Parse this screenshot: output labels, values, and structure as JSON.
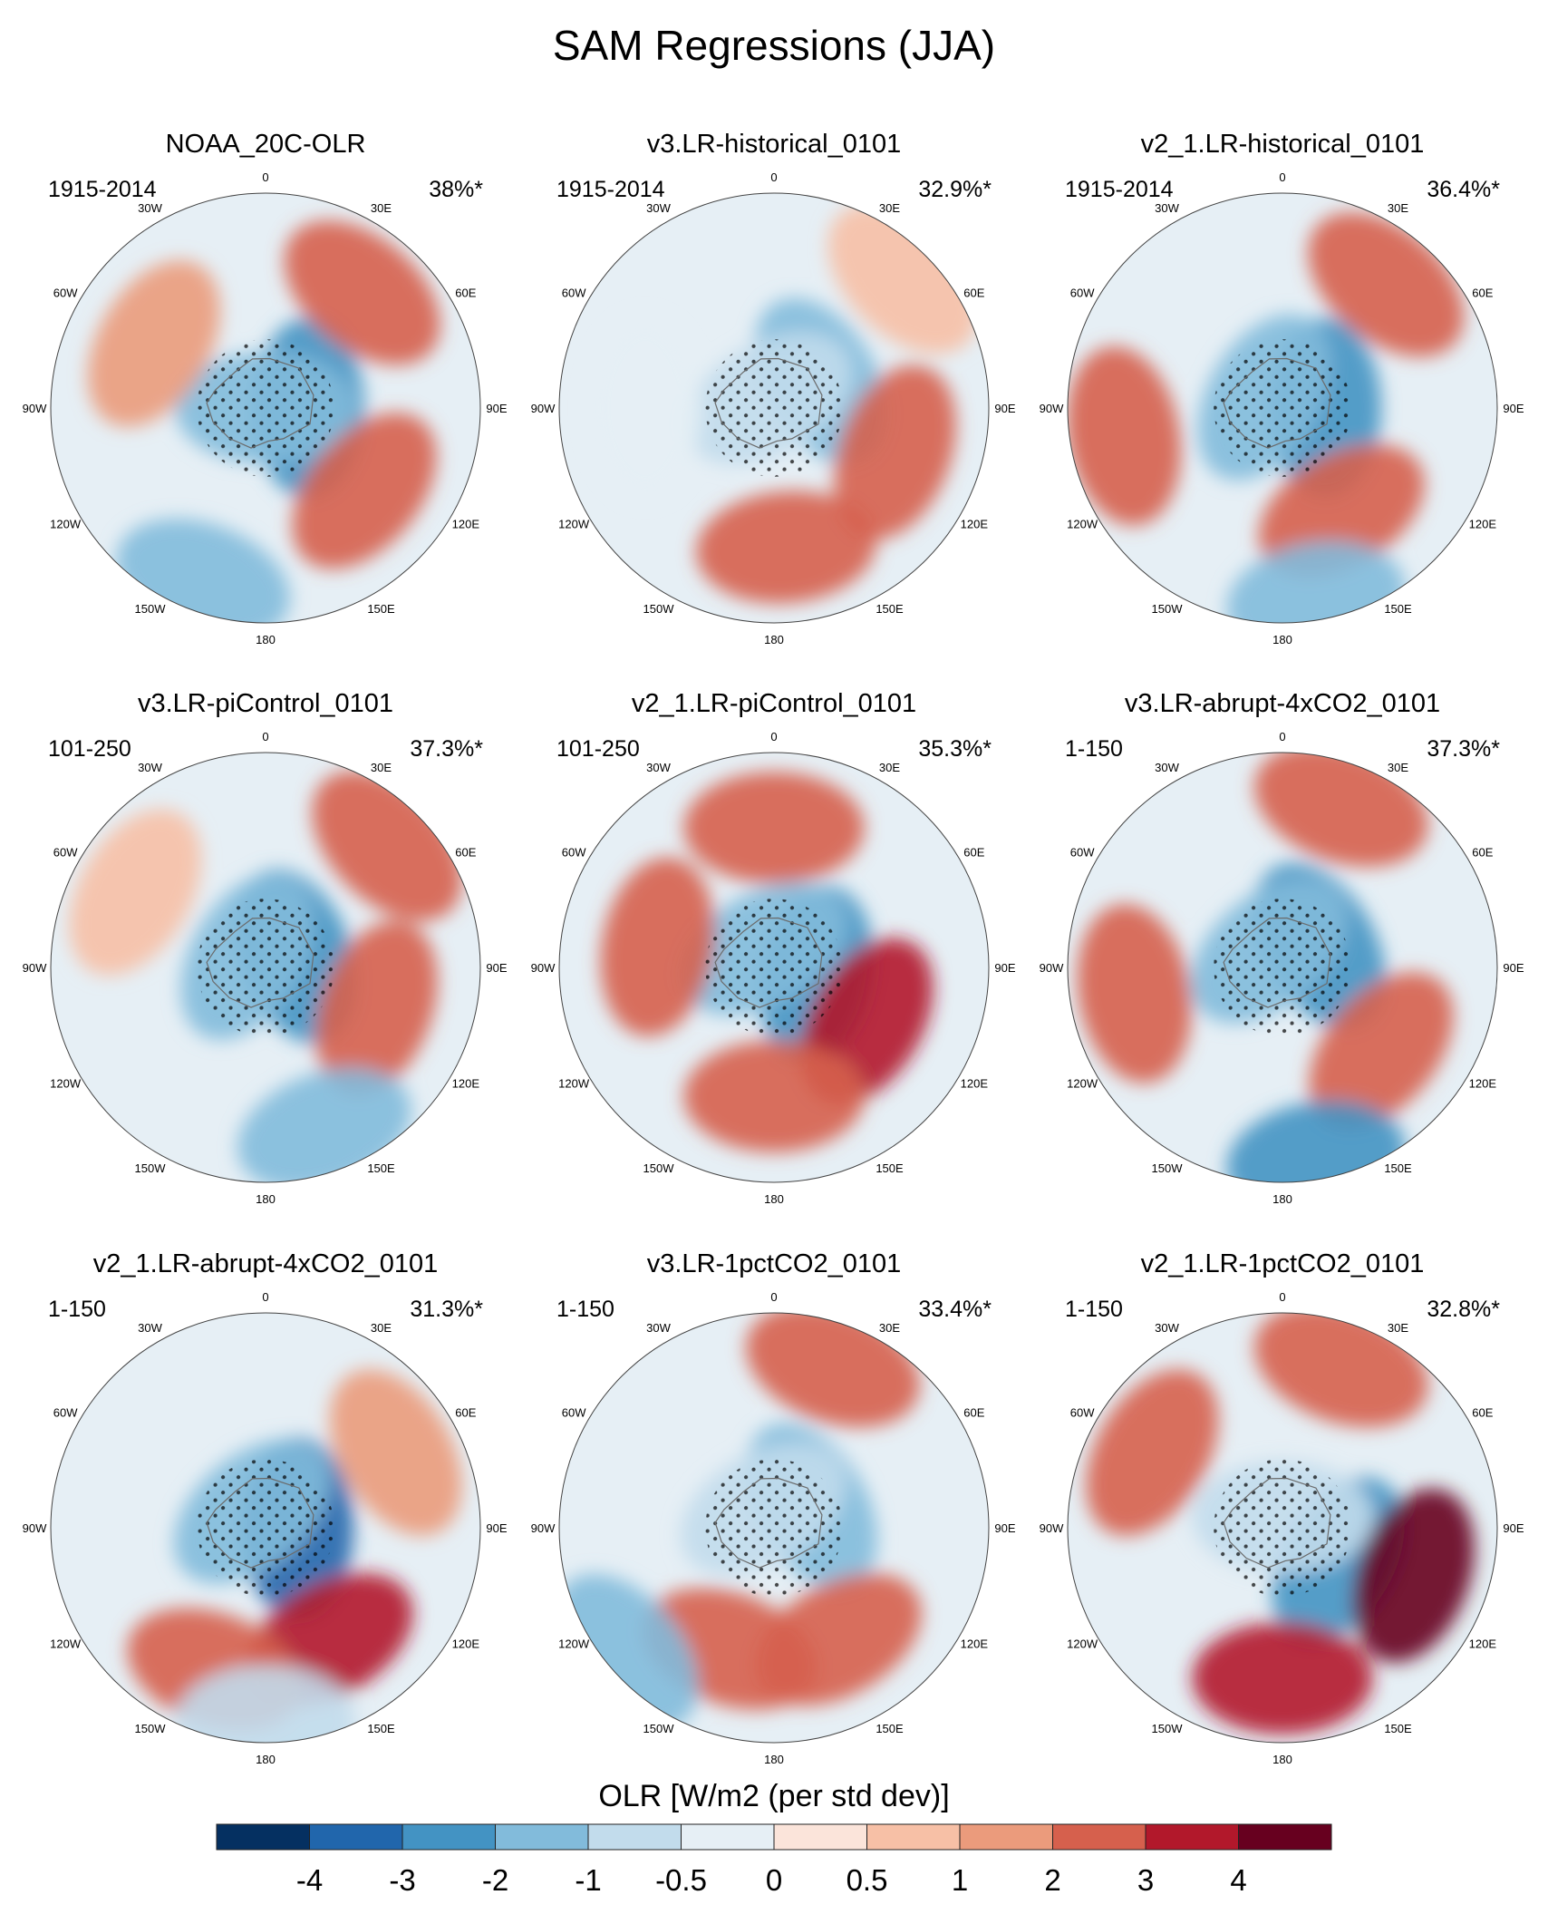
{
  "title": "SAM Regressions (JJA)",
  "colors": {
    "levels": [
      "#053061",
      "#2166ac",
      "#4393c3",
      "#82bbdb",
      "#c2dcec",
      "#e6eff5",
      "#fbe4da",
      "#f7c0a6",
      "#eb9b7c",
      "#d6604d",
      "#b2182b",
      "#67001f"
    ],
    "coast": "#6b6b6b",
    "stipple": "#000000"
  },
  "chart_data": {
    "type": "polar-map-panels",
    "variable": "OLR",
    "season": "JJA",
    "longitude_labels": [
      "0",
      "30E",
      "60E",
      "90E",
      "120E",
      "150E",
      "180",
      "150W",
      "120W",
      "90W",
      "60W",
      "30W"
    ],
    "panels": [
      {
        "title": "NOAA_20C-OLR",
        "period": "1915-2014",
        "variance": "38%*",
        "centers": [
          {
            "lon": 90,
            "r": 0.2,
            "v": -3
          },
          {
            "lon": 0,
            "r": 0.0,
            "v": -2
          },
          {
            "lon": 40,
            "r": 0.7,
            "v": 2
          },
          {
            "lon": 130,
            "r": 0.6,
            "v": 2
          },
          {
            "lon": 200,
            "r": 0.85,
            "v": -2
          },
          {
            "lon": 300,
            "r": 0.6,
            "v": 1
          }
        ]
      },
      {
        "title": "v3.LR-historical_0101",
        "period": "1915-2014",
        "variance": "32.9%*",
        "centers": [
          {
            "lon": 60,
            "r": 0.25,
            "v": -2
          },
          {
            "lon": 330,
            "r": 0.05,
            "v": -1
          },
          {
            "lon": 110,
            "r": 0.6,
            "v": 2
          },
          {
            "lon": 175,
            "r": 0.65,
            "v": 2
          },
          {
            "lon": 45,
            "r": 0.85,
            "v": 0.5
          },
          {
            "lon": 270,
            "r": 0.6,
            "v": -0.5
          }
        ]
      },
      {
        "title": "v2_1.LR-historical_0101",
        "period": "1915-2014",
        "variance": "36.4%*",
        "centers": [
          {
            "lon": 90,
            "r": 0.2,
            "v": -3
          },
          {
            "lon": 300,
            "r": 0.1,
            "v": -2
          },
          {
            "lon": 150,
            "r": 0.55,
            "v": 2
          },
          {
            "lon": 260,
            "r": 0.75,
            "v": 2
          },
          {
            "lon": 40,
            "r": 0.75,
            "v": 2
          },
          {
            "lon": 170,
            "r": 0.9,
            "v": -2
          }
        ]
      },
      {
        "title": "v3.LR-piControl_0101",
        "period": "101-250",
        "variance": "37.3%*",
        "centers": [
          {
            "lon": 70,
            "r": 0.15,
            "v": -3
          },
          {
            "lon": 300,
            "r": 0.1,
            "v": -2
          },
          {
            "lon": 110,
            "r": 0.55,
            "v": 2
          },
          {
            "lon": 45,
            "r": 0.8,
            "v": 2
          },
          {
            "lon": 160,
            "r": 0.8,
            "v": -2
          },
          {
            "lon": 300,
            "r": 0.7,
            "v": 0.5
          }
        ]
      },
      {
        "title": "v2_1.LR-piControl_0101",
        "period": "101-250",
        "variance": "35.3%*",
        "centers": [
          {
            "lon": 100,
            "r": 0.2,
            "v": -3
          },
          {
            "lon": 330,
            "r": 0.1,
            "v": -2
          },
          {
            "lon": 120,
            "r": 0.5,
            "v": 3
          },
          {
            "lon": 180,
            "r": 0.6,
            "v": 2
          },
          {
            "lon": 280,
            "r": 0.55,
            "v": 2
          },
          {
            "lon": 0,
            "r": 0.65,
            "v": 2
          }
        ]
      },
      {
        "title": "v3.LR-abrupt-4xCO2_0101",
        "period": "1-150",
        "variance": "37.3%*",
        "centers": [
          {
            "lon": 60,
            "r": 0.2,
            "v": -3
          },
          {
            "lon": 320,
            "r": 0.1,
            "v": -2
          },
          {
            "lon": 130,
            "r": 0.6,
            "v": 2
          },
          {
            "lon": 260,
            "r": 0.7,
            "v": 2
          },
          {
            "lon": 20,
            "r": 0.8,
            "v": 2
          },
          {
            "lon": 170,
            "r": 0.9,
            "v": -3
          }
        ]
      },
      {
        "title": "v2_1.LR-abrupt-4xCO2_0101",
        "period": "1-150",
        "variance": "31.3%*",
        "centers": [
          {
            "lon": 90,
            "r": 0.15,
            "v": -4
          },
          {
            "lon": 320,
            "r": 0.1,
            "v": -2
          },
          {
            "lon": 150,
            "r": 0.6,
            "v": 3
          },
          {
            "lon": 200,
            "r": 0.7,
            "v": 2
          },
          {
            "lon": 60,
            "r": 0.7,
            "v": 1
          },
          {
            "lon": 180,
            "r": 0.9,
            "v": -1
          }
        ]
      },
      {
        "title": "v3.LR-1pctCO2_0101",
        "period": "1-150",
        "variance": "33.4%*",
        "centers": [
          {
            "lon": 60,
            "r": 0.2,
            "v": -2
          },
          {
            "lon": 330,
            "r": 0.1,
            "v": -1
          },
          {
            "lon": 150,
            "r": 0.6,
            "v": 2
          },
          {
            "lon": 200,
            "r": 0.6,
            "v": 2
          },
          {
            "lon": 20,
            "r": 0.8,
            "v": 2
          },
          {
            "lon": 230,
            "r": 0.9,
            "v": -2
          }
        ]
      },
      {
        "title": "v2_1.LR-1pctCO2_0101",
        "period": "1-150",
        "variance": "32.8%*",
        "centers": [
          {
            "lon": 120,
            "r": 0.3,
            "v": -3
          },
          {
            "lon": 0,
            "r": 0.05,
            "v": -1
          },
          {
            "lon": 110,
            "r": 0.65,
            "v": 4
          },
          {
            "lon": 180,
            "r": 0.7,
            "v": 3
          },
          {
            "lon": 300,
            "r": 0.7,
            "v": 2
          },
          {
            "lon": 20,
            "r": 0.8,
            "v": 2
          }
        ]
      }
    ],
    "colorbar": {
      "title": "OLR [W/m2 (per std dev)]",
      "ticks": [
        "-4",
        "-3",
        "-2",
        "-1",
        "-0.5",
        "0",
        "0.5",
        "1",
        "2",
        "3",
        "4"
      ],
      "boundaries": [
        -4,
        -3,
        -2,
        -1,
        -0.5,
        0,
        0.5,
        1,
        2,
        3,
        4
      ]
    }
  }
}
